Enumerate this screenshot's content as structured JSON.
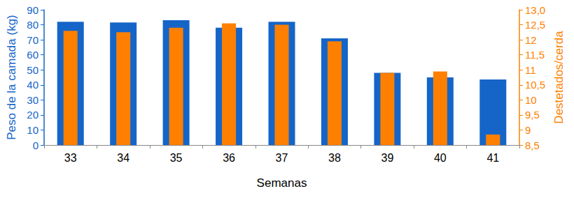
{
  "chart_data": {
    "type": "bar",
    "x_label": "Semanas",
    "y_label": "Peso de la camada (kg)",
    "y2_label": "Destetados/cerda",
    "categories": [
      "33",
      "34",
      "35",
      "36",
      "37",
      "38",
      "39",
      "40",
      "41"
    ],
    "series": [
      {
        "color": "#1565c8",
        "values": [
          82,
          81.5,
          83,
          78,
          82,
          71,
          48,
          45,
          43.6
        ]
      },
      {
        "color": "#ff8000",
        "axis": "y2",
        "values": [
          12.3,
          12.25,
          12.4,
          12.55,
          12.5,
          11.95,
          10.9,
          10.95,
          8.85
        ]
      }
    ],
    "ylim": [
      0,
      90
    ],
    "yticks": [
      0,
      10,
      20,
      30,
      40,
      50,
      60,
      70,
      80,
      90
    ],
    "y2lim": [
      8.5,
      13
    ],
    "y2ticks": [
      {
        "value": 8.5,
        "label": "8,5"
      },
      9,
      {
        "value": 9.5,
        "label": "9,5"
      },
      10,
      {
        "value": 10.5,
        "label": "10,5"
      },
      11,
      {
        "value": 11.5,
        "label": "11,5"
      },
      12,
      {
        "value": 12.5,
        "label": "12,5"
      },
      {
        "value": 13,
        "label": "13,0"
      }
    ],
    "grid": false
  }
}
